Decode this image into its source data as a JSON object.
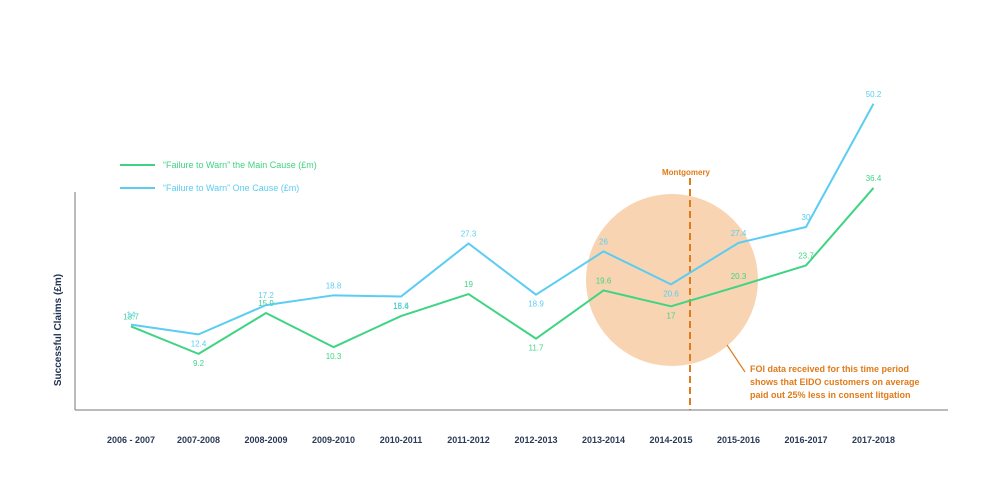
{
  "chart_data": {
    "type": "line",
    "title": "",
    "xlabel": "",
    "ylabel": "Successful Claims (£m)",
    "categories": [
      "2006 - 2007",
      "2007-2008",
      "2008-2009",
      "2009-2010",
      "2010-2011",
      "2011-2012",
      "2012-2013",
      "2013-2014",
      "2014-2015",
      "2015-2016",
      "2016-2017",
      "2017-2018"
    ],
    "ylim": [
      0,
      60
    ],
    "grid": false,
    "legend_position": "top-left",
    "series": [
      {
        "name": "“Failure to Warn” the Main Cause (£m)",
        "color": "#3fd483",
        "values": [
          13.7,
          9.2,
          15.9,
          10.3,
          15.4,
          19,
          11.7,
          19.6,
          17,
          20.3,
          23.7,
          36.4
        ],
        "labels": [
          "13.7",
          "9.2",
          "15.9",
          "10.3",
          "15.4",
          "19",
          "11.7",
          "19.6",
          "17",
          "20.3",
          "23.7",
          "36.4"
        ]
      },
      {
        "name": "“Failure to Warn” One Cause (£m)",
        "color": "#5bcdf2",
        "values": [
          14,
          12.4,
          17.2,
          18.8,
          18.6,
          27.3,
          18.9,
          26,
          20.6,
          27.4,
          30,
          50.2
        ],
        "labels": [
          "14",
          "12.4",
          "17.2",
          "18.8",
          "18.6",
          "27.3",
          "18.9",
          "26",
          "20.6",
          "27.4",
          "30",
          "50.2"
        ]
      }
    ],
    "annotations": {
      "marker_label": "Montgomery",
      "note_lines": [
        "FOI data received for this time period",
        "shows that EIDO customers on average",
        "paid out 25% less in consent litgation"
      ],
      "accent_color": "#e07b1a",
      "highlight_color": "#f8d4b2"
    }
  }
}
